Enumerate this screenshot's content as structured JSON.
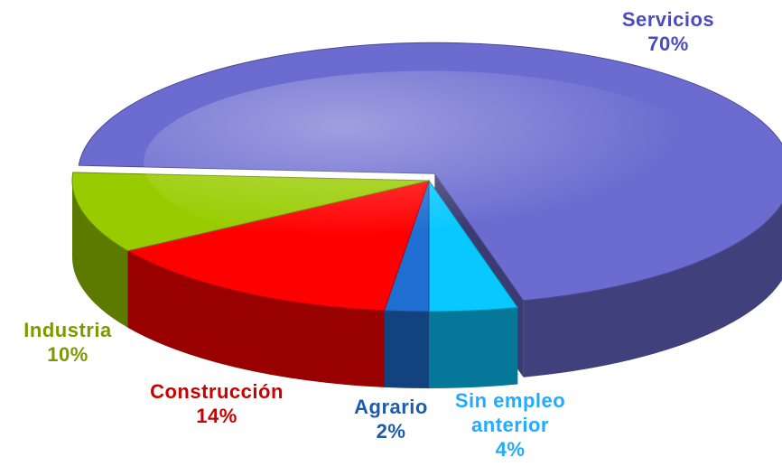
{
  "chart_data": {
    "type": "pie3d",
    "categories": [
      "Servicios",
      "Sin empleo anterior",
      "Agrario",
      "Construcción",
      "Industria"
    ],
    "values": [
      70,
      4,
      2,
      14,
      10
    ],
    "value_labels": [
      "70%",
      "4%",
      "2%",
      "14%",
      "10%"
    ],
    "colors": [
      "#6b6bd0",
      "#08c8ff",
      "#1f6fd2",
      "#ff0000",
      "#99cc00"
    ]
  }
}
